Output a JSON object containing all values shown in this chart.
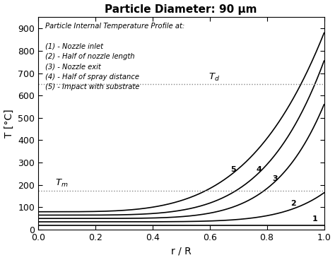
{
  "title": "Particle Diameter: 90 µm",
  "xlabel": "r / R",
  "ylabel": "T [°C]",
  "xlim": [
    0,
    1.0
  ],
  "ylim": [
    0,
    950
  ],
  "yticks": [
    0,
    100,
    200,
    300,
    400,
    500,
    600,
    700,
    800,
    900
  ],
  "xticks": [
    0,
    0.2,
    0.4,
    0.6,
    0.8,
    1.0
  ],
  "Tm": 175,
  "Td": 650,
  "legend_title": "Particle Internal Temperature Profile at:",
  "legend_items": [
    "(1) - Nozzle inlet",
    "(2) - Half of nozzle length",
    "(3) - Nozzle exit",
    "(4) - Half of spray distance",
    "(5) - Impact with substrate"
  ],
  "background_color": "#ffffff",
  "curve_params": [
    [
      20,
      20,
      8
    ],
    [
      35,
      165,
      7
    ],
    [
      50,
      560,
      6
    ],
    [
      65,
      755,
      5
    ],
    [
      80,
      880,
      4
    ]
  ],
  "label_r": [
    0.955,
    0.88,
    0.815,
    0.76,
    0.67
  ],
  "label_offsets": [
    12,
    12,
    12,
    12,
    12
  ]
}
